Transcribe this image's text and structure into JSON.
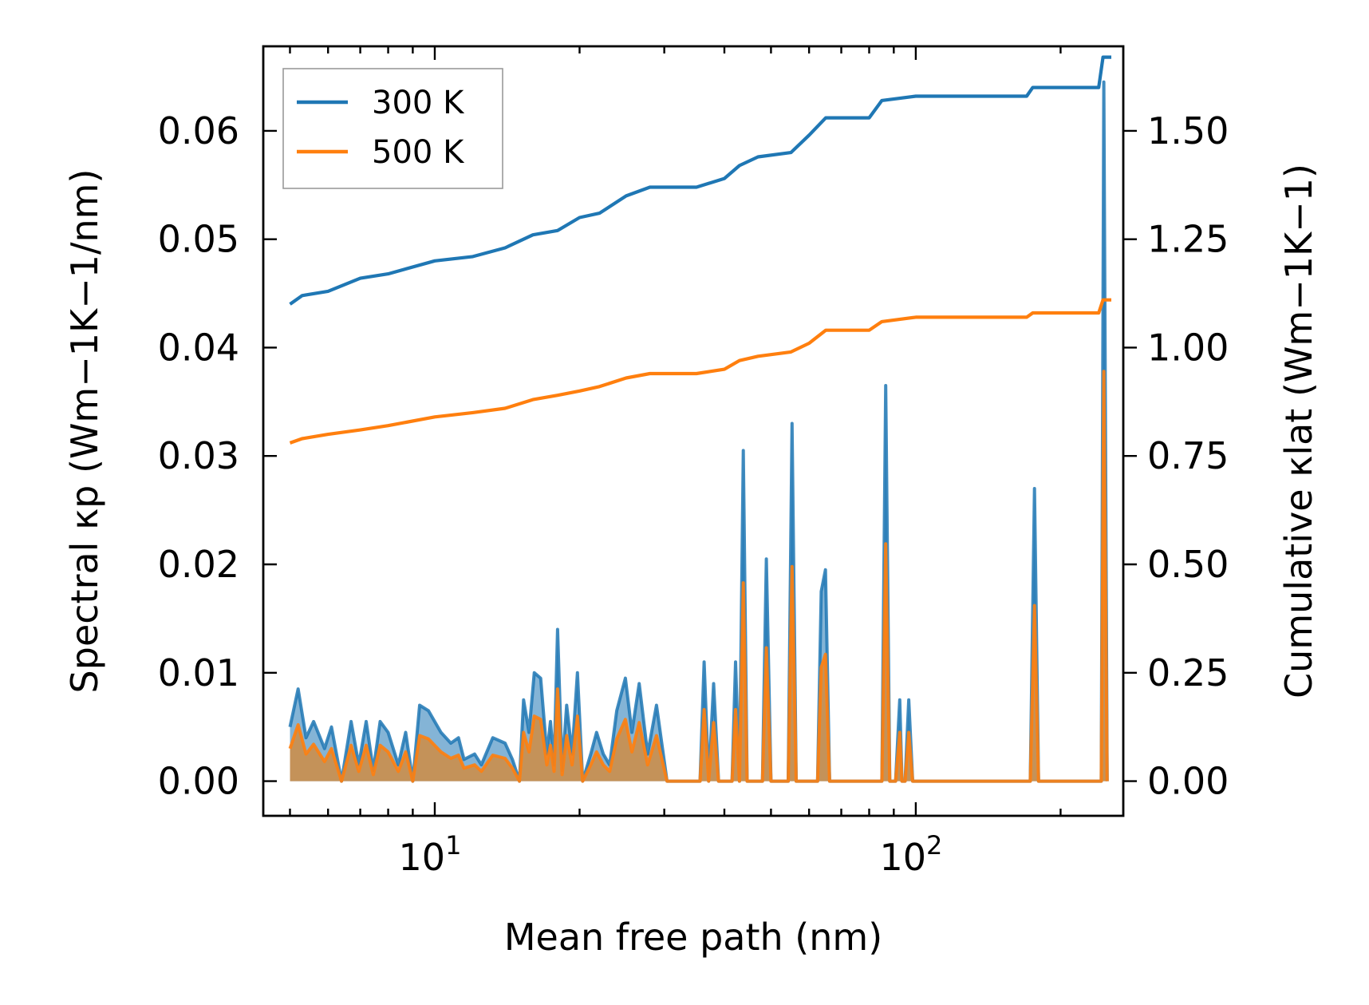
{
  "chart_data": {
    "type": "line",
    "xscale": "log",
    "xlabel": "Mean free path (nm)",
    "ylabel_left": "Spectral κp (Wm−1K−1/nm)",
    "ylabel_right": "Cumulative κlat (Wm−1K−1)",
    "xlim": [
      4.4,
      270
    ],
    "ylim_left": [
      -0.0032,
      0.0678
    ],
    "ylim_right": [
      -0.08,
      1.695
    ],
    "x_tick_labels": [
      {
        "base": "10",
        "exp": "1",
        "value": 10
      },
      {
        "base": "10",
        "exp": "2",
        "value": 100
      }
    ],
    "y_left_ticks": [
      0.0,
      0.01,
      0.02,
      0.03,
      0.04,
      0.05,
      0.06
    ],
    "y_left_tick_labels": [
      "0.00",
      "0.01",
      "0.02",
      "0.03",
      "0.04",
      "0.05",
      "0.06"
    ],
    "y_right_ticks": [
      0.0,
      0.25,
      0.5,
      0.75,
      1.0,
      1.25,
      1.5
    ],
    "y_right_tick_labels": [
      "0.00",
      "0.25",
      "0.50",
      "0.75",
      "1.00",
      "1.25",
      "1.50"
    ],
    "legend": {
      "position": "upper-left",
      "entries": [
        {
          "label": "300 K",
          "color": "#1f77b4"
        },
        {
          "label": "500 K",
          "color": "#ff7f0e"
        }
      ]
    },
    "series_cumulative": [
      {
        "name": "300 K",
        "axis": "right",
        "color": "#1f77b4",
        "points": [
          [
            5.0,
            1.1
          ],
          [
            5.3,
            1.12
          ],
          [
            6.0,
            1.13
          ],
          [
            7.0,
            1.16
          ],
          [
            8.0,
            1.17
          ],
          [
            10,
            1.2
          ],
          [
            12,
            1.21
          ],
          [
            14,
            1.23
          ],
          [
            16,
            1.26
          ],
          [
            18,
            1.27
          ],
          [
            20,
            1.3
          ],
          [
            22,
            1.31
          ],
          [
            25,
            1.35
          ],
          [
            28,
            1.37
          ],
          [
            35,
            1.37
          ],
          [
            40,
            1.39
          ],
          [
            43,
            1.42
          ],
          [
            47,
            1.44
          ],
          [
            55,
            1.45
          ],
          [
            60,
            1.49
          ],
          [
            65,
            1.53
          ],
          [
            80,
            1.53
          ],
          [
            85,
            1.57
          ],
          [
            100,
            1.58
          ],
          [
            170,
            1.58
          ],
          [
            175,
            1.6
          ],
          [
            240,
            1.6
          ],
          [
            245,
            1.67
          ],
          [
            255,
            1.67
          ]
        ]
      },
      {
        "name": "500 K",
        "axis": "right",
        "color": "#ff7f0e",
        "points": [
          [
            5.0,
            0.78
          ],
          [
            5.3,
            0.79
          ],
          [
            6.0,
            0.8
          ],
          [
            7.0,
            0.81
          ],
          [
            8.0,
            0.82
          ],
          [
            10,
            0.84
          ],
          [
            12,
            0.85
          ],
          [
            14,
            0.86
          ],
          [
            16,
            0.88
          ],
          [
            18,
            0.89
          ],
          [
            20,
            0.9
          ],
          [
            22,
            0.91
          ],
          [
            25,
            0.93
          ],
          [
            28,
            0.94
          ],
          [
            35,
            0.94
          ],
          [
            40,
            0.95
          ],
          [
            43,
            0.97
          ],
          [
            47,
            0.98
          ],
          [
            55,
            0.99
          ],
          [
            60,
            1.01
          ],
          [
            65,
            1.04
          ],
          [
            80,
            1.04
          ],
          [
            85,
            1.06
          ],
          [
            100,
            1.07
          ],
          [
            170,
            1.07
          ],
          [
            175,
            1.08
          ],
          [
            240,
            1.08
          ],
          [
            245,
            1.11
          ],
          [
            255,
            1.11
          ]
        ]
      }
    ],
    "series_spectral": [
      {
        "name": "300 K",
        "axis": "left",
        "color": "#1f77b4",
        "points": [
          [
            5.0,
            0.005
          ],
          [
            5.2,
            0.0085
          ],
          [
            5.4,
            0.004
          ],
          [
            5.6,
            0.0055
          ],
          [
            5.9,
            0.003
          ],
          [
            6.1,
            0.005
          ],
          [
            6.4,
            0.0
          ],
          [
            6.7,
            0.0055
          ],
          [
            6.95,
            0.0015
          ],
          [
            7.2,
            0.0055
          ],
          [
            7.45,
            0.001
          ],
          [
            7.7,
            0.0055
          ],
          [
            8.0,
            0.0045
          ],
          [
            8.4,
            0.0015
          ],
          [
            8.7,
            0.0045
          ],
          [
            9.0,
            0.0
          ],
          [
            9.3,
            0.007
          ],
          [
            9.7,
            0.0065
          ],
          [
            10.3,
            0.0045
          ],
          [
            10.8,
            0.0035
          ],
          [
            11.2,
            0.004
          ],
          [
            11.5,
            0.002
          ],
          [
            12.1,
            0.0025
          ],
          [
            12.5,
            0.0015
          ],
          [
            13.2,
            0.004
          ],
          [
            14.0,
            0.0035
          ],
          [
            14.5,
            0.002
          ],
          [
            15.0,
            0.0
          ],
          [
            15.3,
            0.0075
          ],
          [
            15.7,
            0.0045
          ],
          [
            16.1,
            0.01
          ],
          [
            16.6,
            0.0095
          ],
          [
            17.1,
            0.0025
          ],
          [
            17.4,
            0.0055
          ],
          [
            17.7,
            0.0015
          ],
          [
            18.0,
            0.014
          ],
          [
            18.4,
            0.001
          ],
          [
            18.8,
            0.007
          ],
          [
            19.3,
            0.0025
          ],
          [
            19.8,
            0.01
          ],
          [
            20.3,
            0.0
          ],
          [
            21.1,
            0.0025
          ],
          [
            21.7,
            0.0045
          ],
          [
            22.4,
            0.0025
          ],
          [
            23.1,
            0.0015
          ],
          [
            23.9,
            0.0065
          ],
          [
            24.9,
            0.0095
          ],
          [
            25.7,
            0.0045
          ],
          [
            26.6,
            0.009
          ],
          [
            27.7,
            0.0025
          ],
          [
            28.9,
            0.007
          ],
          [
            30.4,
            0.0
          ],
          [
            35.6,
            0.0
          ],
          [
            36.3,
            0.011
          ],
          [
            37.1,
            0.0
          ],
          [
            38.0,
            0.009
          ],
          [
            38.9,
            0.0
          ],
          [
            41.5,
            0.0
          ],
          [
            42.2,
            0.011
          ],
          [
            43.0,
            0.0
          ],
          [
            43.8,
            0.0305
          ],
          [
            44.6,
            0.0
          ],
          [
            48.0,
            0.0
          ],
          [
            48.9,
            0.0205
          ],
          [
            50.0,
            0.0
          ],
          [
            54.3,
            0.0
          ],
          [
            55.3,
            0.033
          ],
          [
            56.4,
            0.0
          ],
          [
            62.5,
            0.0
          ],
          [
            63.6,
            0.0175
          ],
          [
            64.9,
            0.0195
          ],
          [
            66.2,
            0.0
          ],
          [
            85.0,
            0.0
          ],
          [
            86.6,
            0.0365
          ],
          [
            88.3,
            0.0
          ],
          [
            90.8,
            0.0
          ],
          [
            92.6,
            0.0075
          ],
          [
            93.6,
            0.0
          ],
          [
            95.0,
            0.0
          ],
          [
            96.7,
            0.0075
          ],
          [
            98.5,
            0.0
          ],
          [
            173.0,
            0.0
          ],
          [
            176.5,
            0.027
          ],
          [
            180.0,
            0.0
          ],
          [
            243.0,
            0.0
          ],
          [
            246.0,
            0.0645
          ],
          [
            250.0,
            0.0
          ]
        ]
      },
      {
        "name": "500 K",
        "axis": "left",
        "color": "#ff7f0e",
        "points": [
          [
            5.0,
            0.003
          ],
          [
            5.2,
            0.0052
          ],
          [
            5.4,
            0.0025
          ],
          [
            5.6,
            0.0034
          ],
          [
            5.9,
            0.0018
          ],
          [
            6.1,
            0.003
          ],
          [
            6.4,
            0.0
          ],
          [
            6.7,
            0.0033
          ],
          [
            6.95,
            0.0009
          ],
          [
            7.2,
            0.0033
          ],
          [
            7.45,
            0.0006
          ],
          [
            7.7,
            0.0033
          ],
          [
            8.0,
            0.0027
          ],
          [
            8.4,
            0.0009
          ],
          [
            8.7,
            0.0027
          ],
          [
            9.0,
            0.0
          ],
          [
            9.3,
            0.0042
          ],
          [
            9.7,
            0.0039
          ],
          [
            10.3,
            0.0027
          ],
          [
            10.8,
            0.0021
          ],
          [
            11.2,
            0.0024
          ],
          [
            11.5,
            0.0012
          ],
          [
            12.1,
            0.0015
          ],
          [
            12.5,
            0.0009
          ],
          [
            13.2,
            0.0024
          ],
          [
            14.0,
            0.0021
          ],
          [
            14.5,
            0.0012
          ],
          [
            15.0,
            0.0
          ],
          [
            15.3,
            0.0045
          ],
          [
            15.7,
            0.0027
          ],
          [
            16.1,
            0.006
          ],
          [
            16.6,
            0.0057
          ],
          [
            17.1,
            0.0015
          ],
          [
            17.4,
            0.0033
          ],
          [
            17.7,
            0.0009
          ],
          [
            18.0,
            0.0085
          ],
          [
            18.4,
            0.0006
          ],
          [
            18.8,
            0.0042
          ],
          [
            19.3,
            0.0015
          ],
          [
            19.8,
            0.006
          ],
          [
            20.3,
            0.0
          ],
          [
            21.1,
            0.0015
          ],
          [
            21.7,
            0.0027
          ],
          [
            22.4,
            0.0015
          ],
          [
            23.1,
            0.0009
          ],
          [
            23.9,
            0.0039
          ],
          [
            24.9,
            0.0057
          ],
          [
            25.7,
            0.0027
          ],
          [
            26.6,
            0.0054
          ],
          [
            27.7,
            0.0015
          ],
          [
            28.9,
            0.0042
          ],
          [
            30.4,
            0.0
          ],
          [
            35.6,
            0.0
          ],
          [
            36.3,
            0.0066
          ],
          [
            37.1,
            0.0
          ],
          [
            38.0,
            0.0054
          ],
          [
            38.9,
            0.0
          ],
          [
            41.5,
            0.0
          ],
          [
            42.2,
            0.0066
          ],
          [
            43.0,
            0.0
          ],
          [
            43.8,
            0.0183
          ],
          [
            44.6,
            0.0
          ],
          [
            48.0,
            0.0
          ],
          [
            48.9,
            0.0123
          ],
          [
            50.0,
            0.0
          ],
          [
            54.3,
            0.0
          ],
          [
            55.3,
            0.0198
          ],
          [
            56.4,
            0.0
          ],
          [
            62.5,
            0.0
          ],
          [
            63.6,
            0.0105
          ],
          [
            64.9,
            0.0117
          ],
          [
            66.2,
            0.0
          ],
          [
            85.0,
            0.0
          ],
          [
            86.6,
            0.0219
          ],
          [
            88.3,
            0.0
          ],
          [
            90.8,
            0.0
          ],
          [
            92.6,
            0.0045
          ],
          [
            93.6,
            0.0
          ],
          [
            95.0,
            0.0
          ],
          [
            96.7,
            0.0045
          ],
          [
            98.5,
            0.0
          ],
          [
            173.0,
            0.0
          ],
          [
            176.5,
            0.0162
          ],
          [
            180.0,
            0.0
          ],
          [
            243.0,
            0.0
          ],
          [
            246.0,
            0.0378
          ],
          [
            250.0,
            0.0
          ]
        ]
      }
    ]
  }
}
